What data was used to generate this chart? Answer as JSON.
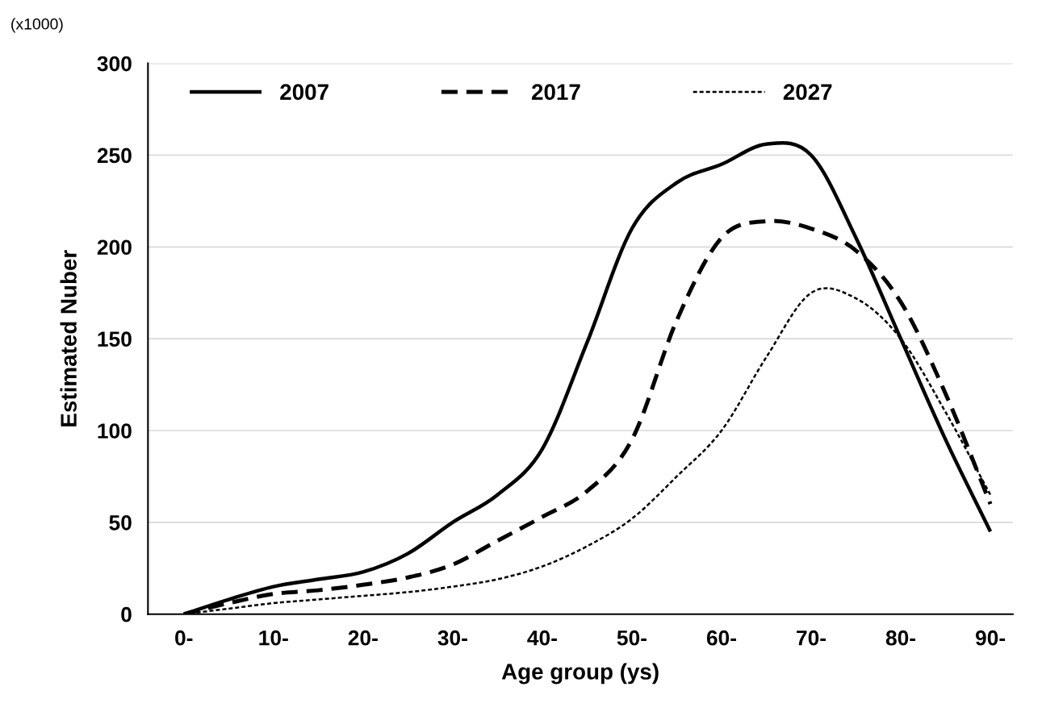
{
  "chart_data": {
    "type": "line",
    "xlabel": "Age group (ys)",
    "ylabel": "Estimated Nuber",
    "annotations": [
      "(x1000)"
    ],
    "categories": [
      "0-",
      null,
      "10-",
      null,
      "20-",
      null,
      "30-",
      null,
      "40-",
      null,
      "50-",
      null,
      "60-",
      null,
      "70-",
      null,
      "80-",
      null,
      "90-"
    ],
    "ylim": [
      0,
      300
    ],
    "yticks": [
      0,
      50,
      100,
      150,
      200,
      250,
      300
    ],
    "grid": "y",
    "legend": "top",
    "marker": "none",
    "series": [
      {
        "name": "2007",
        "color": "#000000",
        "line_style": "solid",
        "values": [
          0,
          8,
          15,
          19,
          23,
          33,
          50,
          65,
          90,
          148,
          210,
          235,
          245,
          256,
          250,
          205,
          150,
          95,
          45
        ]
      },
      {
        "name": "2017",
        "color": "#000000",
        "line_style": "dashed",
        "values": [
          0,
          6,
          11,
          13,
          16,
          20,
          27,
          40,
          53,
          67,
          95,
          160,
          205,
          214,
          210,
          198,
          170,
          120,
          60
        ]
      },
      {
        "name": "2027",
        "color": "#000000",
        "line_style": "dotted",
        "values": [
          0,
          3,
          6,
          8,
          10,
          12,
          15,
          19,
          26,
          37,
          52,
          75,
          100,
          140,
          175,
          172,
          150,
          110,
          65
        ]
      }
    ]
  }
}
